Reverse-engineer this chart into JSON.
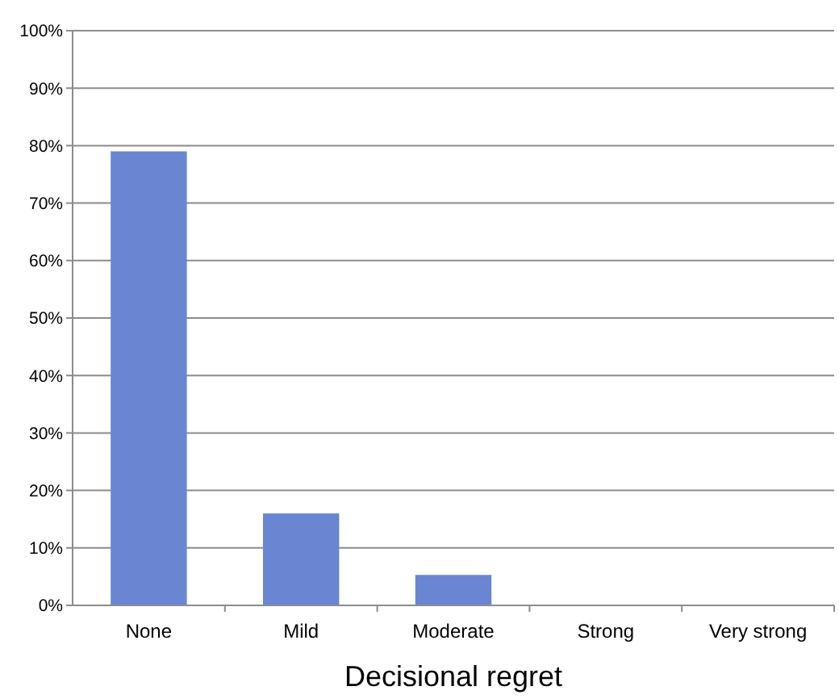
{
  "chart_data": {
    "type": "bar",
    "xlabel": "Decisional regret",
    "categories": [
      "None",
      "Mild",
      "Moderate",
      "Strong",
      "Very strong"
    ],
    "values": [
      79,
      16,
      5.3,
      0,
      0
    ],
    "color": "#6a86d2",
    "ylim": [
      0,
      100
    ],
    "yticks": [
      {
        "value": 0,
        "label": "0%"
      },
      {
        "value": 10,
        "label": "10%"
      },
      {
        "value": 20,
        "label": "20%"
      },
      {
        "value": 30,
        "label": "30%"
      },
      {
        "value": 40,
        "label": "40%"
      },
      {
        "value": 50,
        "label": "50%"
      },
      {
        "value": 60,
        "label": "60%"
      },
      {
        "value": 70,
        "label": "70%"
      },
      {
        "value": 80,
        "label": "80%"
      },
      {
        "value": 90,
        "label": "90%"
      },
      {
        "value": 100,
        "label": "100%"
      }
    ],
    "grid": "y"
  }
}
